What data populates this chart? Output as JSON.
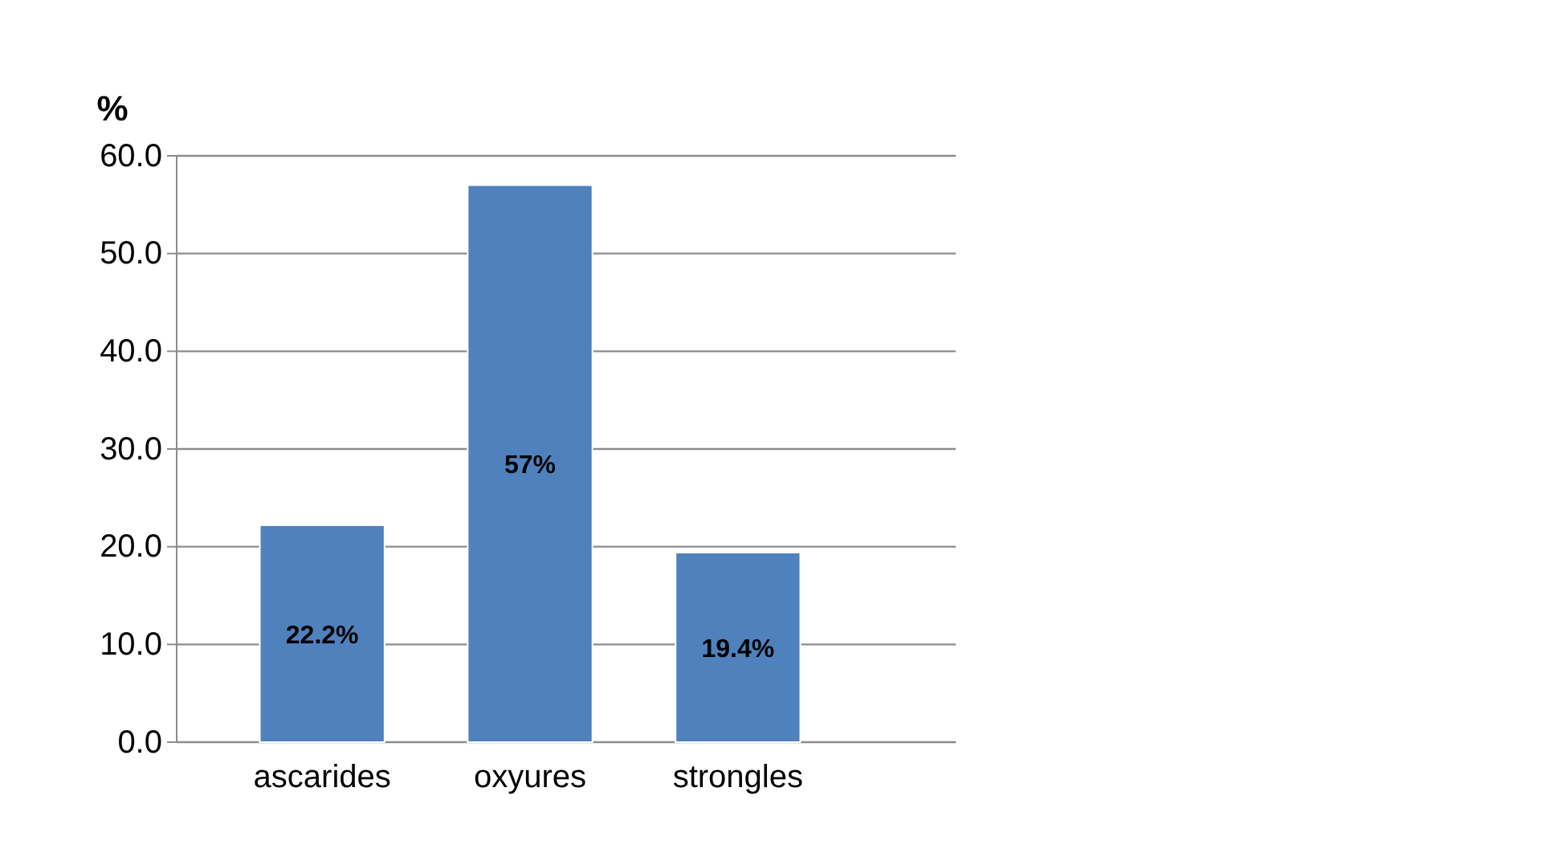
{
  "chart_data": {
    "type": "bar",
    "ylabel": "%",
    "categories": [
      "ascarides",
      "oxyures",
      "strongles"
    ],
    "values": [
      22.2,
      57,
      19.4
    ],
    "color": "#4f81bd",
    "value_labels": [
      "22.2%",
      "57%",
      "19.4%"
    ],
    "ylim": [
      0,
      60
    ],
    "yticks": [
      {
        "value": 0,
        "label": "0.0"
      },
      {
        "value": 10,
        "label": "10.0"
      },
      {
        "value": 20,
        "label": "20.0"
      },
      {
        "value": 30,
        "label": "30.0"
      },
      {
        "value": 40,
        "label": "40.0"
      },
      {
        "value": 50,
        "label": "50.0"
      },
      {
        "value": 60,
        "label": "60.0"
      }
    ],
    "grid": "y"
  }
}
